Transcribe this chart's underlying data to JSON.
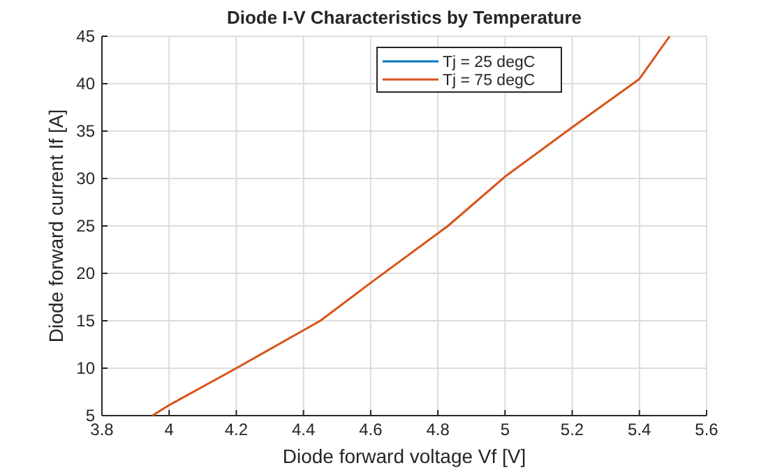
{
  "chart_data": {
    "type": "line",
    "title": "Diode I-V Characteristics by Temperature",
    "xlabel": "Diode forward voltage Vf [V]",
    "ylabel": "Diode forward current If [A]",
    "x": [
      3.95,
      4.0,
      4.2,
      4.45,
      4.6,
      4.83,
      5.0,
      5.2,
      5.4,
      5.49
    ],
    "series": [
      {
        "name": "Tj = 25 degC",
        "color": "#0072bd",
        "values": [
          null,
          null,
          null,
          null,
          null,
          null,
          null,
          null,
          null,
          null
        ]
      },
      {
        "name": "Tj = 75 degC",
        "color": "#d95319",
        "values": [
          5,
          6.1,
          10,
          15,
          19,
          25,
          30.2,
          35.4,
          40.5,
          45
        ]
      }
    ],
    "xlim": [
      3.8,
      5.6
    ],
    "xticks": [
      3.8,
      4,
      4.2,
      4.4,
      4.6,
      4.8,
      5,
      5.2,
      5.4,
      5.6
    ],
    "ylim": [
      5,
      45
    ],
    "yticks": [
      5,
      10,
      15,
      20,
      25,
      30,
      35,
      40,
      45
    ],
    "grid": true,
    "legend": "top right",
    "line_style": "solid"
  }
}
